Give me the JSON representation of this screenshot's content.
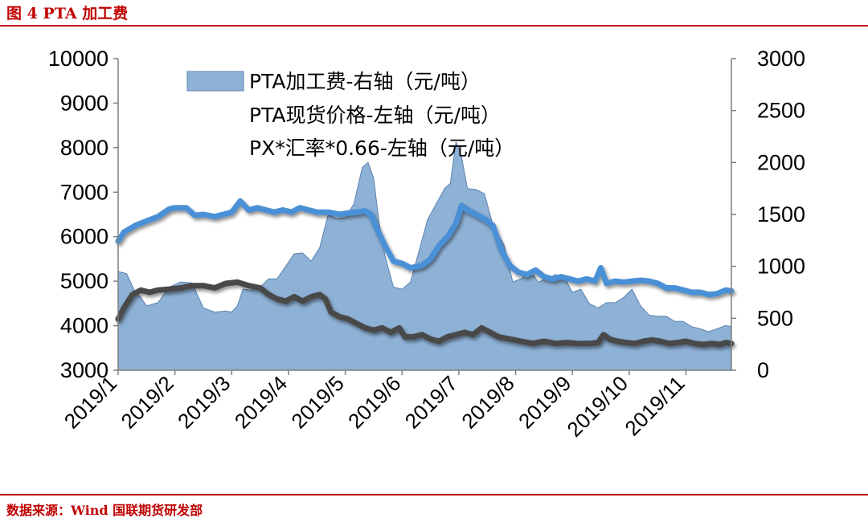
{
  "header": {
    "title": "图 4 PTA 加工费"
  },
  "footer": {
    "source": "数据来源：Wind 国联期货研发部"
  },
  "colors": {
    "accent": "#c00000",
    "area": "#8eb1d6",
    "area_edge": "#5b84b1",
    "pta": "#4a90d6",
    "px": "#4a4a4a"
  },
  "chart_data": {
    "type": "line",
    "title": "",
    "xlabel": "",
    "ylabel_left": "",
    "ylabel_right": "",
    "ylim_left": [
      3000,
      10000
    ],
    "ylim_right": [
      0,
      3000
    ],
    "yticks_left": [
      "3000",
      "4000",
      "5000",
      "6000",
      "7000",
      "8000",
      "9000",
      "10000"
    ],
    "yticks_right": [
      "0",
      "500",
      "1000",
      "1500",
      "2000",
      "2500",
      "3000"
    ],
    "x_range": [
      0,
      10.8
    ],
    "x_ticks": [
      {
        "label": "2019/1",
        "x": 0
      },
      {
        "label": "2019/2",
        "x": 1
      },
      {
        "label": "2019/3",
        "x": 2
      },
      {
        "label": "2019/4",
        "x": 3
      },
      {
        "label": "2019/5",
        "x": 4
      },
      {
        "label": "2019/6",
        "x": 5
      },
      {
        "label": "2019/7",
        "x": 6
      },
      {
        "label": "2019/8",
        "x": 7
      },
      {
        "label": "2019/9",
        "x": 8
      },
      {
        "label": "2019/10",
        "x": 9
      },
      {
        "label": "2019/11",
        "x": 10
      }
    ],
    "grid": false,
    "legend_position": "top-left",
    "series": [
      {
        "name": "PTA加工费-右轴（元/吨）",
        "type": "area",
        "axis": "right",
        "points": [
          [
            0,
            950
          ],
          [
            0.15,
            930
          ],
          [
            0.3,
            750
          ],
          [
            0.4,
            700
          ],
          [
            0.5,
            620
          ],
          [
            0.7,
            650
          ],
          [
            0.9,
            800
          ],
          [
            1.1,
            850
          ],
          [
            1.3,
            840
          ],
          [
            1.5,
            600
          ],
          [
            1.7,
            560
          ],
          [
            1.9,
            570
          ],
          [
            2.0,
            560
          ],
          [
            2.1,
            620
          ],
          [
            2.2,
            780
          ],
          [
            2.35,
            770
          ],
          [
            2.5,
            800
          ],
          [
            2.65,
            880
          ],
          [
            2.8,
            880
          ],
          [
            2.95,
            1000
          ],
          [
            3.1,
            1120
          ],
          [
            3.25,
            1130
          ],
          [
            3.4,
            1050
          ],
          [
            3.55,
            1180
          ],
          [
            3.7,
            1500
          ],
          [
            3.85,
            1460
          ],
          [
            4.0,
            1470
          ],
          [
            4.15,
            1600
          ],
          [
            4.3,
            1950
          ],
          [
            4.4,
            2000
          ],
          [
            4.5,
            1850
          ],
          [
            4.6,
            1400
          ],
          [
            4.7,
            1100
          ],
          [
            4.85,
            800
          ],
          [
            5.0,
            780
          ],
          [
            5.15,
            850
          ],
          [
            5.3,
            1150
          ],
          [
            5.45,
            1450
          ],
          [
            5.6,
            1600
          ],
          [
            5.75,
            1750
          ],
          [
            5.85,
            1800
          ],
          [
            5.95,
            2200
          ],
          [
            6.05,
            2050
          ],
          [
            6.15,
            1750
          ],
          [
            6.3,
            1740
          ],
          [
            6.45,
            1700
          ],
          [
            6.6,
            1400
          ],
          [
            6.8,
            1200
          ],
          [
            6.95,
            850
          ],
          [
            7.1,
            880
          ],
          [
            7.25,
            960
          ],
          [
            7.4,
            850
          ],
          [
            7.55,
            880
          ],
          [
            7.7,
            920
          ],
          [
            7.85,
            900
          ],
          [
            8.0,
            750
          ],
          [
            8.15,
            780
          ],
          [
            8.3,
            640
          ],
          [
            8.45,
            600
          ],
          [
            8.6,
            650
          ],
          [
            8.75,
            650
          ],
          [
            8.9,
            700
          ],
          [
            9.05,
            780
          ],
          [
            9.2,
            620
          ],
          [
            9.35,
            530
          ],
          [
            9.5,
            520
          ],
          [
            9.65,
            520
          ],
          [
            9.8,
            470
          ],
          [
            9.95,
            470
          ],
          [
            10.1,
            420
          ],
          [
            10.25,
            400
          ],
          [
            10.4,
            370
          ],
          [
            10.55,
            400
          ],
          [
            10.7,
            430
          ],
          [
            10.8,
            420
          ]
        ]
      },
      {
        "name": "PTA现货价格-左轴（元/吨）",
        "type": "line",
        "axis": "left",
        "points": [
          [
            0,
            5900
          ],
          [
            0.1,
            6100
          ],
          [
            0.3,
            6250
          ],
          [
            0.5,
            6350
          ],
          [
            0.7,
            6450
          ],
          [
            0.9,
            6620
          ],
          [
            1.0,
            6650
          ],
          [
            1.2,
            6650
          ],
          [
            1.35,
            6480
          ],
          [
            1.5,
            6500
          ],
          [
            1.7,
            6450
          ],
          [
            1.85,
            6500
          ],
          [
            2.0,
            6550
          ],
          [
            2.15,
            6800
          ],
          [
            2.3,
            6600
          ],
          [
            2.45,
            6650
          ],
          [
            2.6,
            6600
          ],
          [
            2.75,
            6550
          ],
          [
            2.9,
            6600
          ],
          [
            3.05,
            6550
          ],
          [
            3.2,
            6650
          ],
          [
            3.35,
            6600
          ],
          [
            3.5,
            6550
          ],
          [
            3.7,
            6550
          ],
          [
            3.9,
            6500
          ],
          [
            4.05,
            6530
          ],
          [
            4.2,
            6550
          ],
          [
            4.35,
            6580
          ],
          [
            4.45,
            6500
          ],
          [
            4.55,
            6200
          ],
          [
            4.7,
            5800
          ],
          [
            4.85,
            5450
          ],
          [
            5.0,
            5400
          ],
          [
            5.15,
            5300
          ],
          [
            5.35,
            5350
          ],
          [
            5.5,
            5500
          ],
          [
            5.65,
            5800
          ],
          [
            5.8,
            6000
          ],
          [
            5.95,
            6300
          ],
          [
            6.05,
            6700
          ],
          [
            6.15,
            6600
          ],
          [
            6.3,
            6500
          ],
          [
            6.45,
            6400
          ],
          [
            6.6,
            6250
          ],
          [
            6.75,
            5700
          ],
          [
            6.9,
            5350
          ],
          [
            7.05,
            5200
          ],
          [
            7.2,
            5150
          ],
          [
            7.35,
            5250
          ],
          [
            7.5,
            5100
          ],
          [
            7.65,
            5050
          ],
          [
            7.8,
            5100
          ],
          [
            7.95,
            5050
          ],
          [
            8.1,
            5000
          ],
          [
            8.25,
            5050
          ],
          [
            8.4,
            5000
          ],
          [
            8.5,
            5300
          ],
          [
            8.6,
            4950
          ],
          [
            8.75,
            5000
          ],
          [
            8.9,
            4980
          ],
          [
            9.05,
            5000
          ],
          [
            9.2,
            5020
          ],
          [
            9.35,
            5000
          ],
          [
            9.5,
            4950
          ],
          [
            9.65,
            4850
          ],
          [
            9.8,
            4850
          ],
          [
            9.95,
            4800
          ],
          [
            10.1,
            4750
          ],
          [
            10.25,
            4750
          ],
          [
            10.4,
            4700
          ],
          [
            10.55,
            4720
          ],
          [
            10.7,
            4800
          ],
          [
            10.8,
            4780
          ]
        ]
      },
      {
        "name": "PX*汇率*0.66-左轴（元/吨）",
        "type": "line",
        "axis": "left",
        "points": [
          [
            0,
            4150
          ],
          [
            0.1,
            4400
          ],
          [
            0.25,
            4700
          ],
          [
            0.4,
            4800
          ],
          [
            0.55,
            4750
          ],
          [
            0.7,
            4800
          ],
          [
            0.9,
            4820
          ],
          [
            1.1,
            4850
          ],
          [
            1.3,
            4900
          ],
          [
            1.5,
            4900
          ],
          [
            1.7,
            4850
          ],
          [
            1.9,
            4950
          ],
          [
            2.1,
            4980
          ],
          [
            2.3,
            4900
          ],
          [
            2.5,
            4850
          ],
          [
            2.65,
            4700
          ],
          [
            2.8,
            4600
          ],
          [
            2.95,
            4550
          ],
          [
            3.1,
            4650
          ],
          [
            3.25,
            4550
          ],
          [
            3.4,
            4650
          ],
          [
            3.55,
            4700
          ],
          [
            3.65,
            4600
          ],
          [
            3.75,
            4300
          ],
          [
            3.9,
            4200
          ],
          [
            4.05,
            4150
          ],
          [
            4.2,
            4050
          ],
          [
            4.35,
            3950
          ],
          [
            4.5,
            3900
          ],
          [
            4.65,
            3950
          ],
          [
            4.8,
            3850
          ],
          [
            4.95,
            3950
          ],
          [
            5.05,
            3750
          ],
          [
            5.2,
            3750
          ],
          [
            5.35,
            3800
          ],
          [
            5.5,
            3700
          ],
          [
            5.65,
            3650
          ],
          [
            5.8,
            3750
          ],
          [
            5.95,
            3800
          ],
          [
            6.1,
            3850
          ],
          [
            6.25,
            3800
          ],
          [
            6.4,
            3950
          ],
          [
            6.55,
            3850
          ],
          [
            6.7,
            3750
          ],
          [
            6.9,
            3700
          ],
          [
            7.1,
            3650
          ],
          [
            7.3,
            3600
          ],
          [
            7.5,
            3650
          ],
          [
            7.7,
            3600
          ],
          [
            7.9,
            3620
          ],
          [
            8.1,
            3600
          ],
          [
            8.3,
            3600
          ],
          [
            8.45,
            3620
          ],
          [
            8.55,
            3800
          ],
          [
            8.65,
            3700
          ],
          [
            8.8,
            3650
          ],
          [
            8.95,
            3620
          ],
          [
            9.1,
            3600
          ],
          [
            9.25,
            3650
          ],
          [
            9.4,
            3680
          ],
          [
            9.55,
            3650
          ],
          [
            9.7,
            3600
          ],
          [
            9.85,
            3620
          ],
          [
            10.0,
            3650
          ],
          [
            10.15,
            3600
          ],
          [
            10.3,
            3580
          ],
          [
            10.45,
            3600
          ],
          [
            10.6,
            3580
          ],
          [
            10.7,
            3620
          ],
          [
            10.8,
            3600
          ]
        ]
      }
    ]
  }
}
